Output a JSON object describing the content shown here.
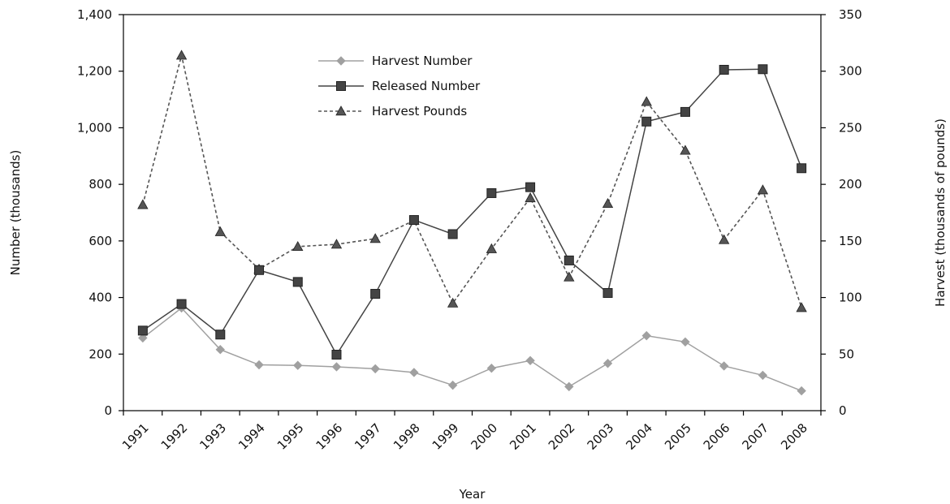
{
  "chart_data": {
    "type": "line",
    "categories": [
      "1991",
      "1992",
      "1993",
      "1994",
      "1995",
      "1996",
      "1997",
      "1998",
      "1999",
      "2000",
      "2001",
      "2002",
      "2003",
      "2004",
      "2005",
      "2006",
      "2007",
      "2008"
    ],
    "xlabel": "Year",
    "ylabel_left": "Number (thousands)",
    "ylabel_right": "Harvest (thousands of pounds)",
    "ylim_left": [
      0,
      1400
    ],
    "ylim_right": [
      0,
      350
    ],
    "yticks_left": [
      "0",
      "200",
      "400",
      "600",
      "800",
      "1,000",
      "1,200",
      "1,400"
    ],
    "yticks_right": [
      "0",
      "50",
      "100",
      "150",
      "200",
      "250",
      "300",
      "350"
    ],
    "legend_position": "top-center",
    "grid": false,
    "series": [
      {
        "name": "Harvest Number",
        "axis": "left",
        "color": "#a0a0a0",
        "marker": "diamond",
        "line_style": "solid",
        "values": [
          257,
          363,
          216,
          162,
          160,
          155,
          148,
          135,
          90,
          150,
          177,
          85,
          167,
          265,
          243,
          158,
          125,
          70
        ]
      },
      {
        "name": "Released Number",
        "axis": "left",
        "color": "#444444",
        "marker": "square",
        "line_style": "solid",
        "values": [
          283,
          377,
          269,
          497,
          455,
          198,
          413,
          674,
          624,
          769,
          790,
          531,
          416,
          1022,
          1056,
          1205,
          1207,
          857
        ]
      },
      {
        "name": "Harvest Pounds",
        "axis": "right",
        "color": "#555555",
        "marker": "triangle",
        "line_style": "dashed",
        "values": [
          182,
          314,
          158,
          125,
          145,
          147,
          152,
          168,
          95,
          143,
          188,
          118,
          183,
          273,
          230,
          151,
          195,
          91
        ]
      }
    ]
  }
}
